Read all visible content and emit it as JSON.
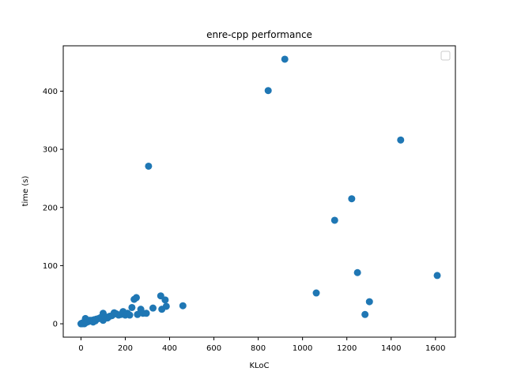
{
  "chart_data": {
    "type": "scatter",
    "title": "enre-cpp performance",
    "xlabel": "KLoC",
    "ylabel": "time (s)",
    "xlim": [
      -80,
      1690
    ],
    "ylim": [
      -23,
      478
    ],
    "xticks": [
      0,
      200,
      400,
      600,
      800,
      1000,
      1200,
      1400,
      1600
    ],
    "yticks": [
      0,
      100,
      200,
      300,
      400
    ],
    "grid": false,
    "legend": {
      "placement": "top-right",
      "entries": []
    },
    "marker_color": "#1f77b4",
    "series": [
      {
        "points": [
          [
            0,
            0
          ],
          [
            2,
            0
          ],
          [
            4,
            1
          ],
          [
            5,
            0
          ],
          [
            6,
            1
          ],
          [
            8,
            1
          ],
          [
            10,
            2
          ],
          [
            12,
            1
          ],
          [
            14,
            2
          ],
          [
            15,
            0
          ],
          [
            18,
            3
          ],
          [
            20,
            9
          ],
          [
            22,
            2
          ],
          [
            25,
            4
          ],
          [
            28,
            3
          ],
          [
            30,
            5
          ],
          [
            35,
            4
          ],
          [
            40,
            6
          ],
          [
            45,
            5
          ],
          [
            50,
            6
          ],
          [
            55,
            3
          ],
          [
            60,
            7
          ],
          [
            65,
            5
          ],
          [
            70,
            8
          ],
          [
            80,
            9
          ],
          [
            90,
            11
          ],
          [
            95,
            10
          ],
          [
            100,
            18
          ],
          [
            100,
            6
          ],
          [
            110,
            12
          ],
          [
            120,
            10
          ],
          [
            130,
            13
          ],
          [
            140,
            14
          ],
          [
            150,
            19
          ],
          [
            160,
            17
          ],
          [
            170,
            15
          ],
          [
            180,
            16
          ],
          [
            190,
            21
          ],
          [
            200,
            15
          ],
          [
            210,
            18
          ],
          [
            220,
            15
          ],
          [
            230,
            28
          ],
          [
            240,
            42
          ],
          [
            250,
            45
          ],
          [
            255,
            16
          ],
          [
            270,
            25
          ],
          [
            280,
            18
          ],
          [
            295,
            18
          ],
          [
            305,
            271
          ],
          [
            325,
            27
          ],
          [
            360,
            48
          ],
          [
            365,
            25
          ],
          [
            380,
            41
          ],
          [
            385,
            30
          ],
          [
            460,
            31
          ],
          [
            845,
            401
          ],
          [
            920,
            455
          ],
          [
            1062,
            53
          ],
          [
            1145,
            178
          ],
          [
            1222,
            215
          ],
          [
            1248,
            88
          ],
          [
            1282,
            16
          ],
          [
            1302,
            38
          ],
          [
            1443,
            316
          ],
          [
            1608,
            83
          ]
        ]
      }
    ]
  }
}
